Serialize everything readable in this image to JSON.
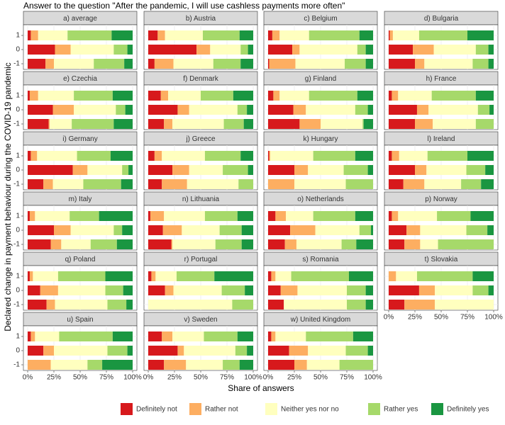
{
  "chart_data": {
    "type": "stacked_barh",
    "title": "Answer to the question \"After the pandemic, I will use cashless payments more often\"",
    "xlabel": "Share of answers",
    "ylabel": "Declared change in payment behaviour during the COVID-19 pandemic",
    "categories": [
      "1",
      "0",
      "-1"
    ],
    "xlim": [
      0,
      100
    ],
    "xticks": [
      {
        "value": 0,
        "label": "0%"
      },
      {
        "value": 25,
        "label": "25%"
      },
      {
        "value": 50,
        "label": "50%"
      },
      {
        "value": 75,
        "label": "75%"
      },
      {
        "value": 100,
        "label": "100%"
      }
    ],
    "grid": true,
    "legend": "bottom",
    "series": [
      {
        "name": "Definitely not",
        "color": "#d7191c"
      },
      {
        "name": "Rather not",
        "color": "#fdae61"
      },
      {
        "name": "Neither yes nor no",
        "color": "#ffffbf"
      },
      {
        "name": "Rather yes",
        "color": "#a6d96a"
      },
      {
        "name": "Definitely yes",
        "color": "#1a9641"
      }
    ],
    "panels": [
      {
        "title": "a) average",
        "values": [
          [
            3,
            7,
            28,
            42,
            20
          ],
          [
            26,
            15,
            41,
            13,
            5
          ],
          [
            17,
            8,
            38,
            29,
            8
          ]
        ]
      },
      {
        "title": "b) Austria",
        "values": [
          [
            9,
            7,
            36,
            35,
            13
          ],
          [
            46,
            13,
            29,
            7,
            5
          ],
          [
            6,
            18,
            38,
            26,
            12
          ]
        ]
      },
      {
        "title": "c) Belgium",
        "values": [
          [
            4,
            7,
            28,
            48,
            13
          ],
          [
            23,
            7,
            55,
            8,
            7
          ],
          [
            1,
            25,
            47,
            20,
            7
          ]
        ]
      },
      {
        "title": "d) Bulgaria",
        "values": [
          [
            1,
            3,
            25,
            46,
            25
          ],
          [
            23,
            20,
            40,
            12,
            5
          ],
          [
            25,
            9,
            46,
            15,
            5
          ]
        ]
      },
      {
        "title": "e) Czechia",
        "values": [
          [
            2,
            8,
            34,
            37,
            19
          ],
          [
            24,
            20,
            40,
            9,
            7
          ],
          [
            20,
            1,
            21,
            40,
            18
          ]
        ]
      },
      {
        "title": "f) Denmark",
        "values": [
          [
            12,
            7,
            31,
            31,
            19
          ],
          [
            28,
            11,
            46,
            9,
            6
          ],
          [
            15,
            8,
            49,
            19,
            9
          ]
        ]
      },
      {
        "title": "g) Finland",
        "values": [
          [
            5,
            6,
            28,
            46,
            15
          ],
          [
            24,
            12,
            47,
            12,
            5
          ],
          [
            30,
            20,
            40,
            1,
            9
          ]
        ]
      },
      {
        "title": "h) France",
        "values": [
          [
            3,
            6,
            32,
            42,
            17
          ],
          [
            27,
            11,
            47,
            11,
            4
          ],
          [
            25,
            17,
            41,
            17,
            0
          ]
        ]
      },
      {
        "title": "i) Germany",
        "values": [
          [
            3,
            6,
            38,
            32,
            21
          ],
          [
            43,
            14,
            33,
            6,
            4
          ],
          [
            15,
            9,
            29,
            36,
            11
          ]
        ]
      },
      {
        "title": "j) Greece",
        "values": [
          [
            6,
            7,
            41,
            34,
            12
          ],
          [
            23,
            16,
            32,
            24,
            5
          ],
          [
            13,
            24,
            49,
            14,
            0
          ]
        ]
      },
      {
        "title": "k) Hungary",
        "values": [
          [
            1,
            1,
            41,
            40,
            17
          ],
          [
            25,
            13,
            34,
            23,
            5
          ],
          [
            0,
            25,
            49,
            26,
            0
          ]
        ]
      },
      {
        "title": "l) Ireland",
        "values": [
          [
            3,
            7,
            27,
            38,
            25
          ],
          [
            25,
            11,
            38,
            18,
            8
          ],
          [
            14,
            20,
            35,
            19,
            12
          ]
        ]
      },
      {
        "title": "m) Italy",
        "values": [
          [
            2,
            5,
            33,
            28,
            32
          ],
          [
            25,
            16,
            41,
            8,
            10
          ],
          [
            22,
            10,
            28,
            25,
            15
          ]
        ]
      },
      {
        "title": "n) Lithuania",
        "values": [
          [
            2,
            13,
            39,
            31,
            15
          ],
          [
            14,
            18,
            36,
            21,
            11
          ],
          [
            22,
            1,
            41,
            25,
            11
          ]
        ]
      },
      {
        "title": "o) Netherlands",
        "values": [
          [
            7,
            10,
            26,
            40,
            17
          ],
          [
            21,
            24,
            42,
            11,
            2
          ],
          [
            16,
            11,
            43,
            14,
            16
          ]
        ]
      },
      {
        "title": "p) Norway",
        "values": [
          [
            3,
            6,
            37,
            32,
            22
          ],
          [
            17,
            13,
            44,
            20,
            6
          ],
          [
            15,
            15,
            17,
            53,
            0
          ]
        ]
      },
      {
        "title": "q) Poland",
        "values": [
          [
            2,
            3,
            24,
            45,
            26
          ],
          [
            12,
            17,
            45,
            17,
            9
          ],
          [
            18,
            8,
            50,
            18,
            6
          ]
        ]
      },
      {
        "title": "r) Portugal",
        "values": [
          [
            3,
            4,
            20,
            36,
            37
          ],
          [
            16,
            8,
            46,
            22,
            8
          ],
          [
            0,
            0,
            80,
            20,
            0
          ]
        ]
      },
      {
        "title": "s) Romania",
        "values": [
          [
            3,
            4,
            15,
            55,
            23
          ],
          [
            12,
            16,
            47,
            18,
            7
          ],
          [
            15,
            0,
            60,
            18,
            7
          ]
        ]
      },
      {
        "title": "t) Slovakia",
        "values": [
          [
            0,
            7,
            20,
            53,
            20
          ],
          [
            29,
            15,
            36,
            15,
            5
          ],
          [
            15,
            29,
            56,
            0,
            0
          ]
        ]
      },
      {
        "title": "u) Spain",
        "values": [
          [
            3,
            4,
            23,
            51,
            19
          ],
          [
            15,
            10,
            51,
            19,
            5
          ],
          [
            0,
            22,
            35,
            14,
            29
          ]
        ]
      },
      {
        "title": "v) Sweden",
        "values": [
          [
            13,
            10,
            30,
            32,
            15
          ],
          [
            28,
            6,
            49,
            11,
            6
          ],
          [
            15,
            21,
            35,
            16,
            13
          ]
        ]
      },
      {
        "title": "w) United Kingdom",
        "values": [
          [
            3,
            4,
            29,
            45,
            19
          ],
          [
            20,
            18,
            36,
            21,
            5
          ],
          [
            25,
            12,
            31,
            32,
            0
          ]
        ]
      }
    ]
  }
}
